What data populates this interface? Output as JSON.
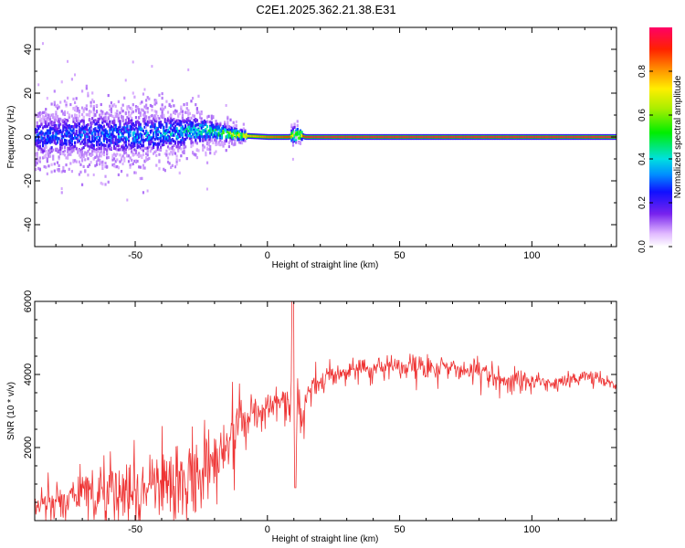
{
  "title": "C2E1.2025.362.21.38.E31",
  "chart_data": [
    {
      "type": "heatmap",
      "xlabel": "Height of straight line (km)",
      "ylabel": "Frequency (Hz)",
      "xlim": [
        -88,
        132
      ],
      "ylim": [
        -50,
        50
      ],
      "xticks": [
        -50,
        0,
        50,
        100
      ],
      "yticks": [
        -40,
        -20,
        0,
        20,
        40
      ],
      "colorbar": {
        "label": "Normalized spectral amplitude",
        "range": [
          0,
          1
        ],
        "ticks": [
          "0.0",
          "0.2",
          "0.4",
          "0.6",
          "0.8"
        ]
      },
      "profile": {
        "x": [
          -88,
          -70,
          -50,
          -35,
          -25,
          -18,
          -12,
          -8,
          0,
          8,
          10,
          12,
          14,
          20,
          40,
          60,
          80,
          100,
          120,
          132
        ],
        "center_hz": [
          0,
          1,
          1,
          2,
          3,
          2,
          1,
          0.5,
          0,
          0,
          1,
          1,
          0,
          0,
          0,
          0,
          0,
          0,
          0,
          0
        ],
        "spread_hz": [
          9,
          10,
          9,
          8,
          6,
          4,
          3,
          2,
          1.2,
          1.5,
          4,
          3,
          1.2,
          1.2,
          1.2,
          1.2,
          1.2,
          1.2,
          1.2,
          1.2
        ],
        "peak_amplitude": [
          0.3,
          0.3,
          0.35,
          0.4,
          0.45,
          0.55,
          0.65,
          0.75,
          0.85,
          0.9,
          0.7,
          0.8,
          0.95,
          0.97,
          0.97,
          0.97,
          0.97,
          0.97,
          0.97,
          0.97
        ]
      }
    },
    {
      "type": "line",
      "xlabel": "Height of straight line (km)",
      "ylabel": "SNR (10 * v/v)",
      "xlim": [
        -88,
        132
      ],
      "ylim": [
        0,
        6000
      ],
      "xticks": [
        -50,
        0,
        50,
        100
      ],
      "yticks": [
        2000,
        4000,
        6000
      ],
      "series": [
        {
          "color": "#ee3333",
          "x": [
            -88,
            -80,
            -70,
            -60,
            -50,
            -40,
            -30,
            -20,
            -15,
            -10,
            -5,
            0,
            5,
            8,
            10,
            12,
            15,
            20,
            25,
            30,
            40,
            50,
            60,
            70,
            80,
            90,
            100,
            110,
            120,
            125,
            132
          ],
          "mean": [
            450,
            520,
            650,
            820,
            980,
            1050,
            1150,
            1300,
            2000,
            2700,
            2950,
            3100,
            3300,
            3200,
            2900,
            2700,
            3450,
            3850,
            4050,
            4100,
            4150,
            4250,
            4250,
            4150,
            4050,
            3850,
            3800,
            3750,
            3950,
            3900,
            3650
          ],
          "spread": [
            250,
            350,
            550,
            700,
            850,
            900,
            950,
            900,
            600,
            400,
            350,
            300,
            300,
            700,
            1600,
            1000,
            350,
            300,
            280,
            280,
            280,
            260,
            250,
            260,
            280,
            270,
            220,
            200,
            150,
            150,
            150
          ]
        }
      ]
    }
  ]
}
